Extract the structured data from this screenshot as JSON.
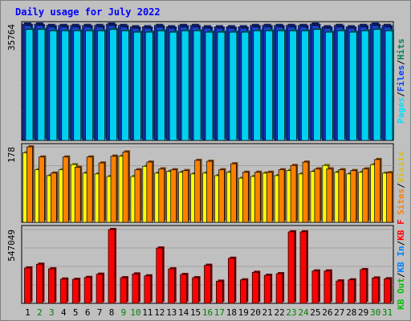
{
  "chart_data": {
    "type": "bar",
    "title": "Daily usage for July 2022",
    "categories": [
      "1",
      "2",
      "3",
      "4",
      "5",
      "6",
      "7",
      "8",
      "9",
      "10",
      "11",
      "12",
      "13",
      "14",
      "15",
      "16",
      "17",
      "18",
      "19",
      "20",
      "21",
      "22",
      "23",
      "24",
      "25",
      "26",
      "27",
      "28",
      "29",
      "30",
      "31"
    ],
    "weekend_days": [
      "2",
      "3",
      "9",
      "10",
      "16",
      "17",
      "23",
      "24",
      "30",
      "31"
    ],
    "panels": [
      {
        "id": "top",
        "max_label": "35764",
        "ylim": [
          0,
          35764
        ],
        "legend": [
          {
            "label": "Hits",
            "color": "#00805c"
          },
          {
            "label": "/",
            "color": "#000000"
          },
          {
            "label": "Files",
            "color": "#0040ff"
          },
          {
            "label": "/",
            "color": "#000000"
          },
          {
            "label": "Pages",
            "color": "#00e0ff"
          }
        ],
        "series": [
          {
            "name": "Hits",
            "color": "#1a3fd6",
            "values": [
              35764,
              35764,
              35350,
              35350,
              35350,
              35350,
              35350,
              35764,
              35350,
              34930,
              34930,
              35350,
              34930,
              35350,
              35350,
              34930,
              34930,
              34930,
              34930,
              35350,
              35350,
              35350,
              35350,
              35350,
              35764,
              34930,
              35350,
              34930,
              35350,
              35764,
              35350
            ]
          },
          {
            "name": "Files",
            "color": "#1a3fd6",
            "values": [
              35350,
              35350,
              34930,
              34930,
              34930,
              34930,
              34930,
              35350,
              34930,
              34520,
              34520,
              34930,
              34520,
              34930,
              34930,
              34520,
              34520,
              34520,
              34520,
              34930,
              34930,
              34930,
              34930,
              34930,
              35350,
              34520,
              34930,
              34520,
              34930,
              35350,
              34930
            ]
          },
          {
            "name": "Pages",
            "color": "#00d0f0",
            "values": [
              34100,
              34100,
              33690,
              33690,
              33690,
              33690,
              33690,
              34100,
              33690,
              33270,
              33270,
              33690,
              33270,
              33690,
              33690,
              33270,
              33270,
              33270,
              33270,
              33690,
              33690,
              33690,
              33690,
              33690,
              34100,
              33270,
              33690,
              33270,
              33690,
              34100,
              33690
            ]
          }
        ]
      },
      {
        "id": "middle",
        "max_label": "178",
        "ylim": [
          0,
          178
        ],
        "legend": [
          {
            "label": "Visits",
            "color": "#e0c000"
          },
          {
            "label": "/",
            "color": "#000000"
          },
          {
            "label": "Sites",
            "color": "#ff8000"
          }
        ],
        "series": [
          {
            "name": "Visits",
            "color": "#ffff00",
            "values": [
              164,
              124,
              110,
              124,
              136,
              116,
              114,
              108,
              156,
              108,
              132,
              116,
              120,
              118,
              114,
              116,
              110,
              118,
              104,
              108,
              116,
              110,
              122,
              114,
              120,
              134,
              118,
              114,
              118,
              136,
              116
            ]
          },
          {
            "name": "Sites",
            "color": "#ff8000",
            "values": [
              178,
              154,
              116,
              154,
              130,
              154,
              140,
              156,
              166,
              124,
              142,
              126,
              124,
              122,
              146,
              144,
              124,
              138,
              118,
              118,
              118,
              124,
              134,
              142,
              126,
              126,
              124,
              122,
              126,
              148,
              117
            ]
          }
        ]
      },
      {
        "id": "bottom",
        "max_label": "547049",
        "ylim": [
          0,
          547049
        ],
        "legend": [
          {
            "label": "KB F",
            "color": "#ff0000"
          },
          {
            "label": "/",
            "color": "#000000"
          },
          {
            "label": "KB In",
            "color": "#0080ff"
          },
          {
            "label": "/",
            "color": "#000000"
          },
          {
            "label": "KB Out",
            "color": "#00c000"
          }
        ],
        "series": [
          {
            "name": "KB F",
            "color": "#ff0000",
            "values": [
              262000,
              290000,
              256000,
              180000,
              178000,
              192000,
              216000,
              547049,
              190000,
              218000,
              204000,
              410000,
              256000,
              214000,
              190000,
              282000,
              164000,
              334000,
              174000,
              230000,
              208000,
              220000,
              530000,
              530000,
              240000,
              240000,
              166000,
              174000,
              250000,
              188000,
              182000
            ]
          }
        ]
      }
    ]
  }
}
